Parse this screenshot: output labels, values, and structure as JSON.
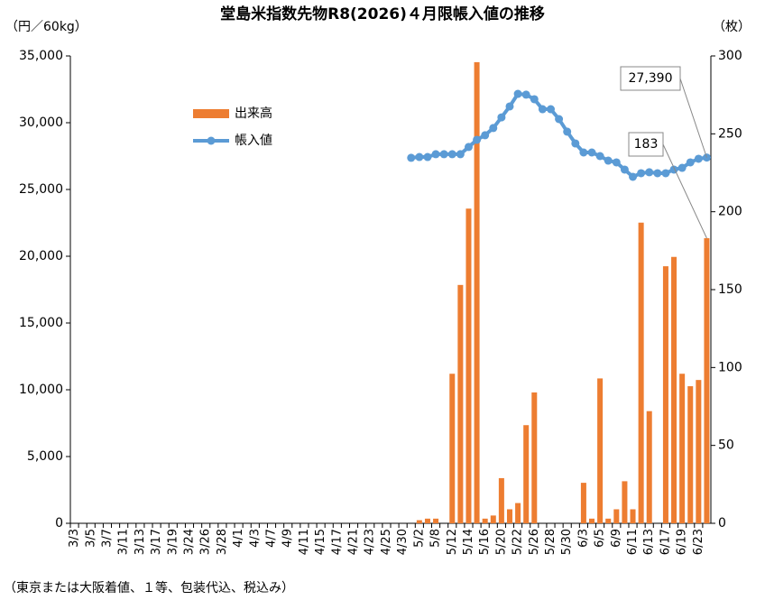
{
  "chart_data": {
    "type": "combo",
    "title": "堂島米指数先物R8(2026)４月限帳入値の推移",
    "y_label": "（円／60kg）",
    "y2_label": "（枚）",
    "footnote": "（東京または大阪着値、１等、包装代込、税込み）",
    "categories": [
      "3/3",
      null,
      "3/5",
      null,
      "3/7",
      null,
      "3/11",
      null,
      "3/13",
      null,
      "3/17",
      null,
      "3/19",
      null,
      "3/24",
      null,
      "3/26",
      null,
      "3/28",
      null,
      "4/1",
      null,
      "4/3",
      null,
      "4/7",
      null,
      "4/9",
      null,
      "4/11",
      null,
      "4/15",
      null,
      "4/17",
      null,
      "4/21",
      null,
      "4/23",
      null,
      "4/25",
      null,
      "4/30",
      null,
      "5/2",
      null,
      "5/8",
      null,
      "5/12",
      null,
      "5/14",
      null,
      "5/16",
      null,
      "5/20",
      null,
      "5/22",
      null,
      "5/26",
      null,
      "5/28",
      null,
      "5/30",
      null,
      "6/3",
      null,
      "6/5",
      null,
      "6/9",
      null,
      "6/11",
      null,
      "6/13",
      null,
      "6/17",
      null,
      "6/19",
      null,
      "6/23",
      null
    ],
    "series": [
      {
        "name": "出来高",
        "type": "bar",
        "axis": "y2",
        "color": "#ED7D31",
        "values": [
          null,
          null,
          null,
          null,
          null,
          null,
          null,
          null,
          null,
          null,
          null,
          null,
          null,
          null,
          null,
          null,
          null,
          null,
          null,
          null,
          null,
          null,
          null,
          null,
          null,
          null,
          null,
          null,
          null,
          null,
          null,
          null,
          null,
          null,
          null,
          null,
          null,
          null,
          null,
          null,
          null,
          null,
          2,
          3,
          3,
          0,
          96,
          153,
          202,
          296,
          3,
          5,
          29,
          9,
          13,
          63,
          84,
          0,
          0,
          0,
          0,
          0,
          26,
          3,
          93,
          3,
          9,
          27,
          9,
          193,
          72,
          0,
          165,
          171,
          96,
          88,
          92,
          183
        ]
      },
      {
        "name": "帳入値",
        "type": "line",
        "color": "#5B9BD5",
        "values": [
          null,
          null,
          null,
          null,
          null,
          null,
          null,
          null,
          null,
          null,
          null,
          null,
          null,
          null,
          null,
          null,
          null,
          null,
          null,
          null,
          null,
          null,
          null,
          null,
          null,
          null,
          null,
          null,
          null,
          null,
          null,
          null,
          null,
          null,
          null,
          null,
          null,
          null,
          null,
          null,
          null,
          27370,
          27430,
          27430,
          27640,
          27640,
          27640,
          27640,
          28180,
          28720,
          29060,
          29600,
          30400,
          31220,
          32160,
          32100,
          31760,
          31010,
          31010,
          30270,
          29330,
          28450,
          27770,
          27770,
          27500,
          27160,
          27030,
          26490,
          25950,
          26220,
          26290,
          26220,
          26220,
          26490,
          26620,
          27030,
          27300,
          27390
        ]
      }
    ],
    "ylim": [
      0,
      35000
    ],
    "yticks": [
      0,
      {
        "value": 5000,
        "label": "5,000"
      },
      {
        "value": 10000,
        "label": "10,000"
      },
      {
        "value": 15000,
        "label": "15,000"
      },
      {
        "value": 20000,
        "label": "20,000"
      },
      {
        "value": 25000,
        "label": "25,000"
      },
      {
        "value": 30000,
        "label": "30,000"
      },
      {
        "value": 35000,
        "label": "35,000"
      }
    ],
    "y2lim": [
      0,
      300
    ],
    "y2ticks": [
      0,
      50,
      100,
      150,
      200,
      250,
      300
    ],
    "annotations": [
      "27,390",
      "183"
    ],
    "grid": false
  }
}
